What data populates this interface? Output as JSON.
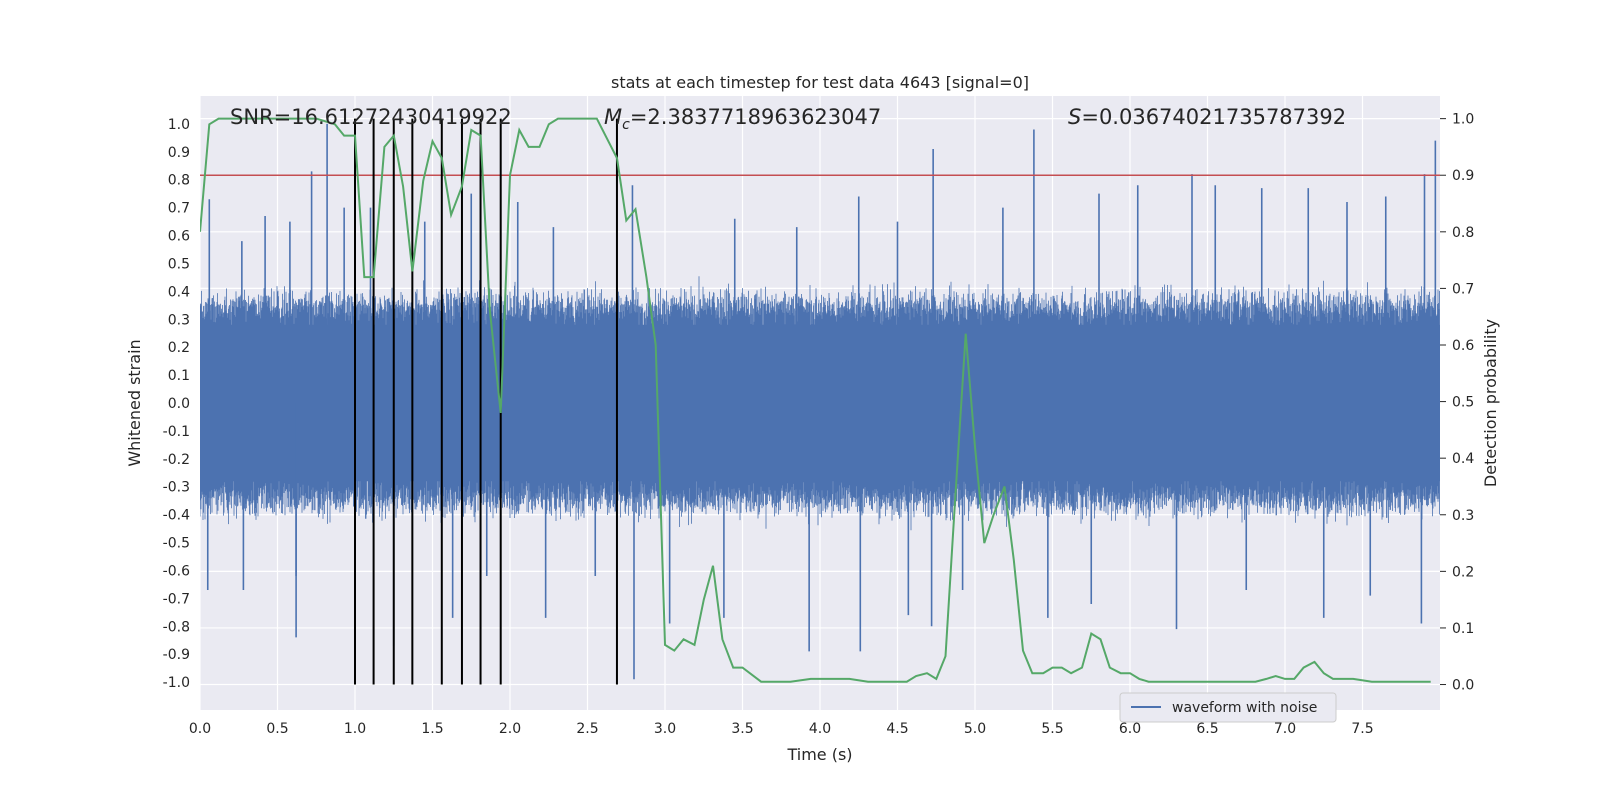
{
  "chart_data": {
    "type": "line",
    "title": "stats at each timestep for test data 4643 [signal=0]",
    "xlabel": "Time (s)",
    "ylabel": "Whitened strain",
    "y2label": "Detection probability",
    "xlim": [
      0,
      8
    ],
    "ylim": [
      -1.1,
      1.1
    ],
    "y2lim": [
      -0.045,
      1.04
    ],
    "xticks": [
      "0.0",
      "0.5",
      "1.0",
      "1.5",
      "2.0",
      "2.5",
      "3.0",
      "3.5",
      "4.0",
      "4.5",
      "5.0",
      "5.5",
      "6.0",
      "6.5",
      "7.0",
      "7.5"
    ],
    "yticks": [
      "1.0",
      "0.9",
      "0.8",
      "0.7",
      "0.6",
      "0.5",
      "0.4",
      "0.3",
      "0.2",
      "0.1",
      "0.0",
      "-0.1",
      "-0.2",
      "-0.3",
      "-0.4",
      "-0.5",
      "-0.6",
      "-0.7",
      "-0.8",
      "-0.9",
      "-1.0"
    ],
    "y2ticks": [
      "1.0",
      "0.9",
      "0.8",
      "0.7",
      "0.6",
      "0.5",
      "0.4",
      "0.3",
      "0.2",
      "0.1",
      "0.0"
    ],
    "annotations": {
      "snr": "SNR=16.61272430419922",
      "mc_symbol": "M",
      "mc_sub": "c",
      "mc_value": "=2.3837718963623047",
      "s_symbol": "S",
      "s_value": "=0.03674021735787392"
    },
    "legend": {
      "label": "waveform with noise",
      "position": "lower-right"
    },
    "threshold": {
      "y2": 0.9,
      "color": "#c44e52"
    },
    "markers_x": [
      1.0,
      1.12,
      1.25,
      1.37,
      1.56,
      1.69,
      1.81,
      1.94,
      2.69
    ],
    "strain_noise": {
      "color": "#4c72b0",
      "base_amplitude": 0.35,
      "seed": 4643
    },
    "strain_spikes": [
      {
        "x": 0.06,
        "y": 0.73
      },
      {
        "x": 0.27,
        "y": 0.58
      },
      {
        "x": 0.42,
        "y": 0.67
      },
      {
        "x": 0.58,
        "y": 0.65
      },
      {
        "x": 0.72,
        "y": 0.83
      },
      {
        "x": 0.82,
        "y": 1.0
      },
      {
        "x": 0.93,
        "y": 0.7
      },
      {
        "x": 1.1,
        "y": 0.7
      },
      {
        "x": 1.45,
        "y": 0.65
      },
      {
        "x": 1.75,
        "y": 0.75
      },
      {
        "x": 2.05,
        "y": 0.72
      },
      {
        "x": 2.28,
        "y": 0.63
      },
      {
        "x": 2.79,
        "y": 0.78
      },
      {
        "x": 3.45,
        "y": 0.66
      },
      {
        "x": 3.85,
        "y": 0.63
      },
      {
        "x": 4.25,
        "y": 0.74
      },
      {
        "x": 4.5,
        "y": 0.65
      },
      {
        "x": 4.73,
        "y": 0.91
      },
      {
        "x": 5.18,
        "y": 0.7
      },
      {
        "x": 5.38,
        "y": 0.98
      },
      {
        "x": 5.8,
        "y": 0.75
      },
      {
        "x": 6.05,
        "y": 0.78
      },
      {
        "x": 6.4,
        "y": 0.82
      },
      {
        "x": 6.55,
        "y": 0.78
      },
      {
        "x": 6.85,
        "y": 0.77
      },
      {
        "x": 7.15,
        "y": 0.77
      },
      {
        "x": 7.4,
        "y": 0.72
      },
      {
        "x": 7.65,
        "y": 0.74
      },
      {
        "x": 7.9,
        "y": 0.82
      },
      {
        "x": 7.97,
        "y": 0.94
      },
      {
        "x": 0.05,
        "y": -0.67
      },
      {
        "x": 0.28,
        "y": -0.67
      },
      {
        "x": 0.62,
        "y": -0.62
      },
      {
        "x": 0.62,
        "y": -0.84
      },
      {
        "x": 1.25,
        "y": -0.87
      },
      {
        "x": 1.63,
        "y": -0.77
      },
      {
        "x": 1.85,
        "y": -0.62
      },
      {
        "x": 2.23,
        "y": -0.77
      },
      {
        "x": 2.55,
        "y": -0.62
      },
      {
        "x": 2.8,
        "y": -0.99
      },
      {
        "x": 3.03,
        "y": -0.79
      },
      {
        "x": 3.38,
        "y": -0.77
      },
      {
        "x": 3.93,
        "y": -0.89
      },
      {
        "x": 4.26,
        "y": -0.89
      },
      {
        "x": 4.57,
        "y": -0.76
      },
      {
        "x": 4.72,
        "y": -0.8
      },
      {
        "x": 4.92,
        "y": -0.67
      },
      {
        "x": 5.47,
        "y": -0.77
      },
      {
        "x": 5.75,
        "y": -0.72
      },
      {
        "x": 6.3,
        "y": -0.81
      },
      {
        "x": 6.75,
        "y": -0.67
      },
      {
        "x": 7.25,
        "y": -0.77
      },
      {
        "x": 7.55,
        "y": -0.69
      },
      {
        "x": 7.88,
        "y": -0.79
      }
    ],
    "detection_probability": {
      "color": "#55a868",
      "x": [
        0.0,
        0.06,
        0.12,
        0.25,
        0.37,
        0.5,
        0.62,
        0.75,
        0.87,
        0.93,
        1.0,
        1.06,
        1.12,
        1.19,
        1.25,
        1.31,
        1.37,
        1.44,
        1.5,
        1.56,
        1.62,
        1.69,
        1.75,
        1.81,
        1.87,
        1.94,
        2.0,
        2.06,
        2.12,
        2.19,
        2.25,
        2.31,
        2.44,
        2.56,
        2.69,
        2.75,
        2.81,
        2.88,
        2.94,
        3.0,
        3.06,
        3.12,
        3.19,
        3.25,
        3.31,
        3.37,
        3.44,
        3.5,
        3.62,
        3.69,
        3.81,
        3.94,
        4.06,
        4.19,
        4.31,
        4.44,
        4.56,
        4.62,
        4.69,
        4.75,
        4.81,
        4.87,
        4.94,
        5.0,
        5.06,
        5.12,
        5.19,
        5.25,
        5.31,
        5.37,
        5.44,
        5.5,
        5.56,
        5.62,
        5.69,
        5.75,
        5.81,
        5.87,
        5.94,
        6.0,
        6.06,
        6.12,
        6.19,
        6.31,
        6.44,
        6.56,
        6.69,
        6.81,
        6.88,
        6.94,
        7.0,
        7.06,
        7.12,
        7.19,
        7.25,
        7.31,
        7.44,
        7.56,
        7.69,
        7.81,
        7.94
      ],
      "y": [
        0.8,
        0.99,
        1.0,
        1.0,
        1.0,
        1.0,
        1.0,
        1.0,
        0.99,
        0.97,
        0.97,
        0.72,
        0.72,
        0.95,
        0.97,
        0.88,
        0.73,
        0.89,
        0.96,
        0.93,
        0.83,
        0.88,
        0.98,
        0.97,
        0.66,
        0.48,
        0.9,
        0.98,
        0.95,
        0.95,
        0.99,
        1.0,
        1.0,
        1.0,
        0.93,
        0.82,
        0.84,
        0.72,
        0.6,
        0.07,
        0.06,
        0.08,
        0.07,
        0.15,
        0.21,
        0.08,
        0.03,
        0.03,
        0.005,
        0.005,
        0.005,
        0.01,
        0.01,
        0.01,
        0.005,
        0.005,
        0.005,
        0.015,
        0.02,
        0.01,
        0.05,
        0.32,
        0.62,
        0.42,
        0.25,
        0.3,
        0.35,
        0.22,
        0.06,
        0.02,
        0.02,
        0.03,
        0.03,
        0.02,
        0.03,
        0.09,
        0.08,
        0.03,
        0.02,
        0.02,
        0.01,
        0.005,
        0.005,
        0.005,
        0.005,
        0.005,
        0.005,
        0.005,
        0.01,
        0.015,
        0.01,
        0.01,
        0.03,
        0.04,
        0.02,
        0.01,
        0.01,
        0.005,
        0.005,
        0.005,
        0.005
      ]
    }
  }
}
